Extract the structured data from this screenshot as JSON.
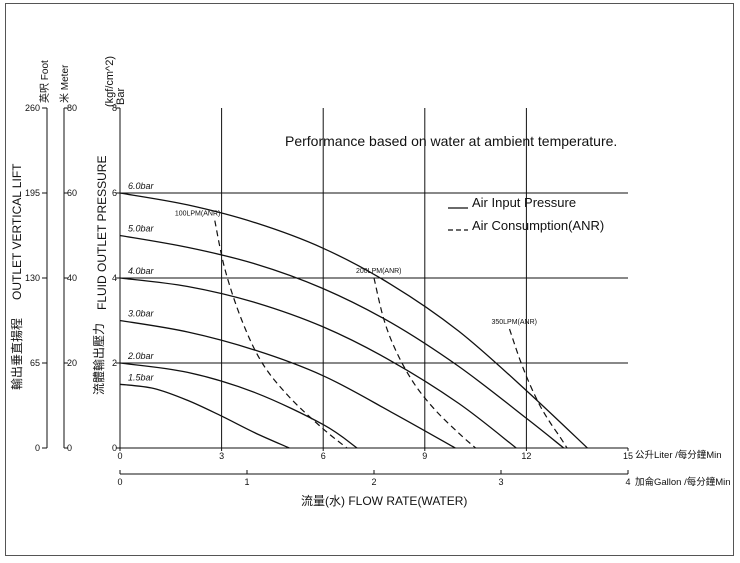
{
  "chart_data": {
    "type": "line",
    "annotation": "Performance based on water at ambient temperature.",
    "legend": [
      {
        "name": "Air Input Pressure",
        "style": "solid"
      },
      {
        "name": "Air Consumption(ANR)",
        "style": "dashed"
      }
    ],
    "y_axis": {
      "unit_top": "(kgf/cm^2)",
      "unit_bottom": "Bar",
      "label": "FLUID OUTLET PRESSURE",
      "label_cjk": "流體輸出壓力",
      "ticks": [
        "0",
        "2",
        "4",
        "6",
        "8"
      ],
      "ylim": [
        0,
        8
      ]
    },
    "foot_axis": {
      "unit": "英呎 Foot",
      "ticks": [
        "0",
        "65",
        "130",
        "195",
        "260"
      ]
    },
    "meter_axis": {
      "unit": "米 Meter",
      "ticks": [
        "0",
        "20",
        "40",
        "60",
        "80"
      ]
    },
    "left_label": "OUTLET VERTICAL LIFT",
    "left_label_cjk": "輸出垂直揚程",
    "x_axis": {
      "ticks": [
        "0",
        "3",
        "6",
        "9",
        "12",
        "15"
      ],
      "unit": "公升Liter /每分鐘Min",
      "xlim": [
        0,
        15
      ]
    },
    "x_axis2": {
      "ticks": [
        "0",
        "1",
        "2",
        "3",
        "4"
      ],
      "unit": "加侖Gallon /每分鐘Min"
    },
    "x_title": "流量(水) FLOW RATE(WATER)",
    "series": [
      {
        "name": "6.0bar",
        "x": [
          0,
          2,
          4,
          6,
          8,
          10,
          12,
          13.8
        ],
        "y": [
          6.0,
          5.72,
          5.3,
          4.7,
          3.85,
          2.75,
          1.35,
          0
        ]
      },
      {
        "name": "5.0bar",
        "x": [
          0,
          2,
          4,
          6,
          8,
          10,
          12,
          13.1
        ],
        "y": [
          5.0,
          4.72,
          4.33,
          3.75,
          2.95,
          1.92,
          0.7,
          0
        ]
      },
      {
        "name": "4.0bar",
        "x": [
          0,
          2,
          4,
          6,
          8,
          10,
          11.7
        ],
        "y": [
          4.0,
          3.8,
          3.42,
          2.85,
          2.05,
          1.05,
          0
        ]
      },
      {
        "name": "3.0bar",
        "x": [
          0,
          2,
          4,
          6,
          8,
          9.9
        ],
        "y": [
          3.0,
          2.73,
          2.3,
          1.7,
          0.85,
          0
        ]
      },
      {
        "name": "2.0bar",
        "x": [
          0,
          2,
          4,
          6,
          7.0
        ],
        "y": [
          2.0,
          1.78,
          1.3,
          0.55,
          0
        ]
      },
      {
        "name": "1.5bar",
        "x": [
          0,
          1,
          2,
          3,
          4,
          5.0
        ],
        "y": [
          1.5,
          1.4,
          1.12,
          0.75,
          0.35,
          0
        ]
      }
    ],
    "consumption": [
      {
        "name": "100LPM(ANR)",
        "x": [
          2.8,
          3.1,
          3.6,
          4.2,
          5.0,
          6.0,
          6.7
        ],
        "y": [
          5.35,
          4.2,
          3.0,
          2.0,
          1.2,
          0.45,
          0
        ]
      },
      {
        "name": "200LPM(ANR)",
        "x": [
          7.5,
          7.8,
          8.2,
          8.7,
          9.3,
          10.0,
          10.5
        ],
        "y": [
          4.0,
          3.0,
          2.2,
          1.5,
          0.9,
          0.35,
          0
        ]
      },
      {
        "name": "350LPM(ANR)",
        "x": [
          11.5,
          11.8,
          12.1,
          12.4,
          12.7,
          13.0,
          13.2
        ],
        "y": [
          2.8,
          2.1,
          1.5,
          1.0,
          0.6,
          0.25,
          0
        ]
      }
    ]
  }
}
